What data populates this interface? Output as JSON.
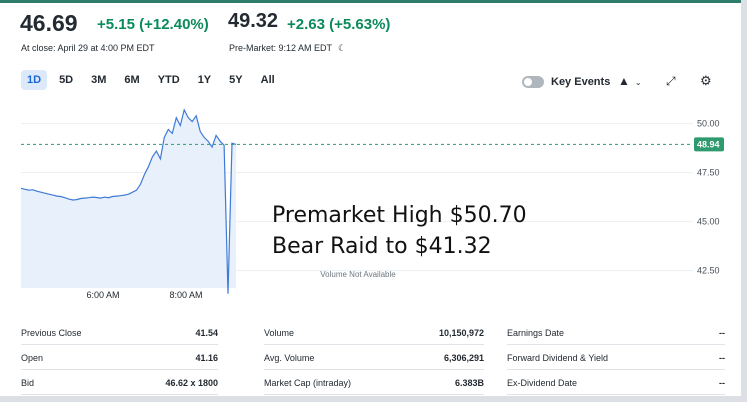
{
  "quote": {
    "price": "46.69",
    "change": "+5.15 (+12.40%)",
    "close_note": "At close: April 29 at 4:00 PM EDT",
    "premarket_price": "49.32",
    "premarket_change": "+2.63 (+5.63%)",
    "premarket_note": "Pre-Market: 9:12 AM EDT",
    "premarket_icon": "moon-icon"
  },
  "range_tabs": [
    "1D",
    "5D",
    "3M",
    "6M",
    "YTD",
    "1Y",
    "5Y",
    "All"
  ],
  "active_tab": "1D",
  "toolbar": {
    "key_events_label": "Key Events",
    "chart_type_icon": "mountain-chart-icon",
    "expand_icon": "expand-icon",
    "settings_icon": "gear-icon"
  },
  "chart_data": {
    "type": "line",
    "y_ticks": [
      "50.00",
      "47.50",
      "45.00",
      "42.50"
    ],
    "ylim": [
      41.0,
      51.0
    ],
    "x_ticks": [
      "6:00 AM",
      "8:00 AM"
    ],
    "reference_price": 48.94,
    "last_price_label": "48.94",
    "volume_note": "Volume Not Available",
    "line_color": "#3e7bd6",
    "fill_color": "#e8f0fb",
    "reference_line_color": "#2e9a6e",
    "series": [
      {
        "values": [
          46.7,
          46.65,
          46.6,
          46.62,
          46.55,
          46.5,
          46.45,
          46.4,
          46.35,
          46.3,
          46.28,
          46.22,
          46.15,
          46.1,
          46.12,
          46.18,
          46.2,
          46.22,
          46.25,
          46.23,
          46.2,
          46.25,
          46.22,
          46.28,
          46.3,
          46.32,
          46.35,
          46.4,
          46.5,
          46.6,
          46.9,
          47.4,
          47.8,
          48.3,
          48.6,
          48.2,
          49.3,
          49.7,
          49.5,
          50.3,
          49.9,
          50.7,
          50.3,
          50.1,
          50.4,
          49.6,
          49.3,
          49.1,
          48.8,
          49.4,
          49.1,
          48.9,
          41.32,
          49.0,
          48.94
        ]
      }
    ]
  },
  "annotations": {
    "line1": "Premarket High $50.70",
    "line2": "Bear Raid to $41.32"
  },
  "stats": [
    [
      {
        "label": "Previous Close",
        "value": "41.54"
      },
      {
        "label": "Open",
        "value": "41.16"
      },
      {
        "label": "Bid",
        "value": "46.62 x 1800"
      }
    ],
    [
      {
        "label": "Volume",
        "value": "10,150,972"
      },
      {
        "label": "Avg. Volume",
        "value": "6,306,291"
      },
      {
        "label": "Market Cap (intraday)",
        "value": "6.383B"
      }
    ],
    [
      {
        "label": "Earnings Date",
        "value": "--"
      },
      {
        "label": "Forward Dividend & Yield",
        "value": "--"
      },
      {
        "label": "Ex-Dividend Date",
        "value": "--"
      }
    ]
  ]
}
